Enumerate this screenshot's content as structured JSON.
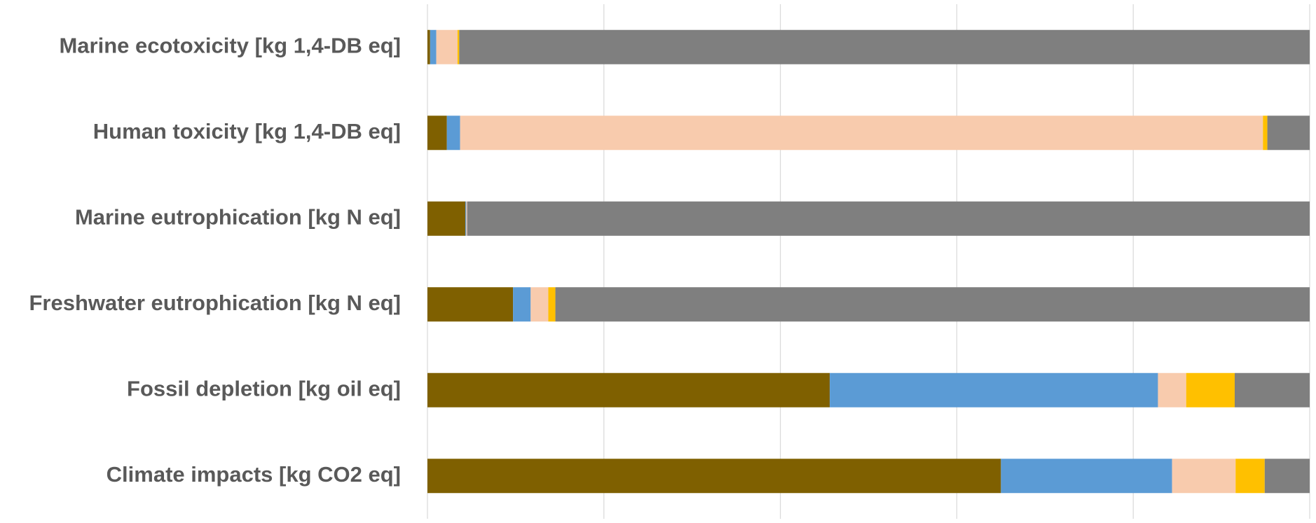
{
  "chart_data": {
    "type": "bar",
    "orientation": "horizontal",
    "stacked": true,
    "categories": [
      "Marine ecotoxicity [kg 1,4-DB eq]",
      "Human toxicity [kg 1,4-DB eq]",
      "Marine eutrophication [kg N eq]",
      "Freshwater eutrophication [kg N eq]",
      "Fossil depletion [kg oil eq]",
      "Climate impacts [kg CO2 eq]"
    ],
    "series": [
      {
        "color": "#7f6000",
        "values": [
          0.3,
          2.2,
          4.3,
          9.7,
          45.6,
          65.0
        ]
      },
      {
        "color": "#5b9bd5",
        "values": [
          0.7,
          1.5,
          0.1,
          2.0,
          37.2,
          19.4
        ]
      },
      {
        "color": "#f8cbad",
        "values": [
          2.4,
          91.0,
          0.1,
          2.0,
          3.2,
          7.2
        ]
      },
      {
        "color": "#ffc000",
        "values": [
          0.2,
          0.5,
          0.0,
          0.8,
          5.5,
          3.3
        ]
      },
      {
        "color": "#7f7f7f",
        "values": [
          96.4,
          4.8,
          95.5,
          85.5,
          8.5,
          5.1
        ]
      }
    ],
    "xlim": [
      0,
      100
    ],
    "xticks": [
      0,
      20,
      40,
      60,
      80,
      100
    ],
    "grid": true
  }
}
